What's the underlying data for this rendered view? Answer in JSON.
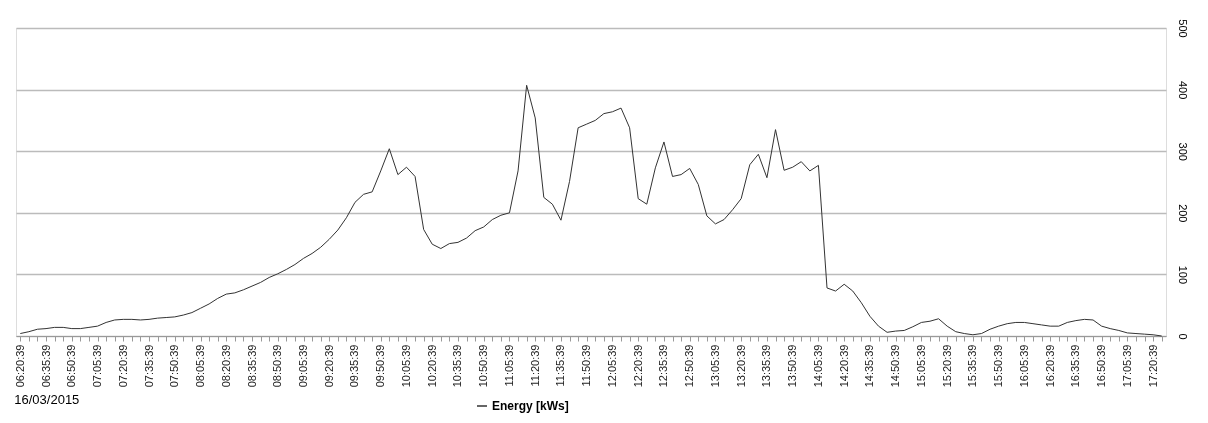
{
  "chart_data": {
    "type": "line",
    "categories": [
      "06:20:39",
      null,
      null,
      "06:35:39",
      null,
      null,
      "06:50:39",
      null,
      null,
      "07:05:39",
      null,
      null,
      "07:20:39",
      null,
      null,
      "07:35:39",
      null,
      null,
      "07:50:39",
      null,
      null,
      "08:05:39",
      null,
      null,
      "08:20:39",
      null,
      null,
      "08:35:39",
      null,
      null,
      "08:50:39",
      null,
      null,
      "09:05:39",
      null,
      null,
      "09:20:39",
      null,
      null,
      "09:35:39",
      null,
      null,
      "09:50:39",
      null,
      null,
      "10:05:39",
      null,
      null,
      "10:20:39",
      null,
      null,
      "10:35:39",
      null,
      null,
      "10:50:39",
      null,
      null,
      "11:05:39",
      null,
      null,
      "11:20:39",
      null,
      null,
      "11:35:39",
      null,
      null,
      "11:50:39",
      null,
      null,
      "12:05:39",
      null,
      null,
      "12:20:39",
      null,
      null,
      "12:35:39",
      null,
      null,
      "12:50:39",
      null,
      null,
      "13:05:39",
      null,
      null,
      "13:20:39",
      null,
      null,
      "13:35:39",
      null,
      null,
      "13:50:39",
      null,
      null,
      "14:05:39",
      null,
      null,
      "14:20:39",
      null,
      null,
      "14:35:39",
      null,
      null,
      "14:50:39",
      null,
      null,
      "15:05:39",
      null,
      null,
      "15:20:39",
      null,
      null,
      "15:35:39",
      null,
      null,
      "15:50:39",
      null,
      null,
      "16:05:39",
      null,
      null,
      "16:20:39",
      null,
      null,
      "16:35:39",
      null,
      null,
      "16:50:39",
      null,
      null,
      "17:05:39",
      null,
      null,
      "17:20:39",
      null
    ],
    "series": [
      {
        "name": "Energy [kWs]",
        "color": "#333333",
        "values": [
          4,
          7,
          11,
          12,
          14,
          14,
          12,
          12,
          14,
          16,
          22,
          26,
          27,
          27,
          26,
          27,
          29,
          30,
          31,
          34,
          38,
          45,
          52,
          61,
          68,
          70,
          75,
          81,
          87,
          95,
          101,
          108,
          116,
          126,
          134,
          144,
          157,
          172,
          192,
          217,
          230,
          234,
          268,
          304,
          262,
          274,
          259,
          173,
          149,
          142,
          150,
          152,
          159,
          171,
          177,
          189,
          196,
          200,
          268,
          407,
          354,
          225,
          214,
          188,
          251,
          338,
          344,
          350,
          361,
          364,
          370,
          338,
          223,
          214,
          273,
          315,
          259,
          262,
          272,
          246,
          195,
          182,
          189,
          205,
          223,
          278,
          295,
          257,
          335,
          269,
          274,
          283,
          268,
          277,
          78,
          73,
          84,
          73,
          54,
          32,
          16,
          6,
          8,
          9,
          15,
          22,
          24,
          28,
          16,
          7,
          4,
          2,
          4,
          11,
          16,
          20,
          22,
          22,
          20,
          18,
          16,
          16,
          22,
          25,
          27,
          26,
          16,
          12,
          9,
          5,
          4,
          3,
          2,
          0
        ]
      }
    ],
    "ylim": [
      0,
      500
    ],
    "yticks": [
      0,
      100,
      200,
      300,
      400,
      500
    ],
    "grid": "y",
    "legend": "bottom",
    "marker": "none",
    "line_style": "solid",
    "annotations": [
      "16/03/2015"
    ]
  }
}
